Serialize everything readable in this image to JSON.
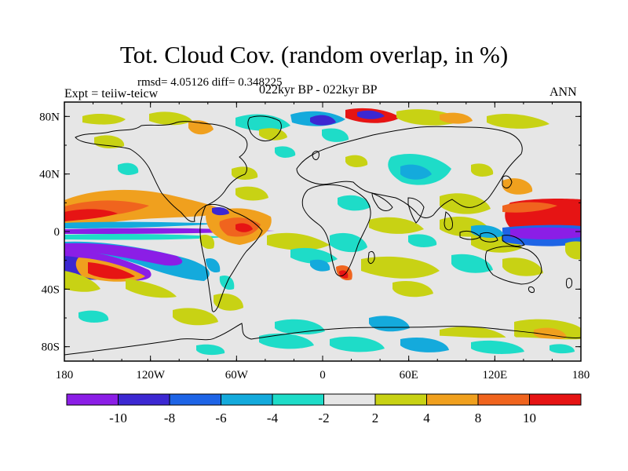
{
  "title": "Tot. Cloud Cov. (random overlap, in %)",
  "stats": "rmsd= 4.05126 diff= 0.348225",
  "experiment": "Expt = teiiw-teicw",
  "period": "022kyr BP - 022kyr BP",
  "season": "ANN",
  "chart_data": {
    "type": "heatmap",
    "projection": "cylindrical-equidistant",
    "x_range": [
      -180,
      180
    ],
    "y_range": [
      -90,
      90
    ],
    "x_ticks": [
      "180",
      "120W",
      "60W",
      "0",
      "60E",
      "120E",
      "180"
    ],
    "y_ticks": [
      "80N",
      "40N",
      "0",
      "40S",
      "80S"
    ],
    "colorbar": {
      "levels": [
        "-10",
        "-8",
        "-6",
        "-4",
        "-2",
        "2",
        "4",
        "8",
        "10"
      ],
      "colors": [
        "#8b1ee6",
        "#3c28d2",
        "#1e64e6",
        "#14aadc",
        "#1edcc8",
        "#e6e6e6",
        "#c8d214",
        "#f0a01e",
        "#f0641e",
        "#e61414"
      ]
    }
  }
}
